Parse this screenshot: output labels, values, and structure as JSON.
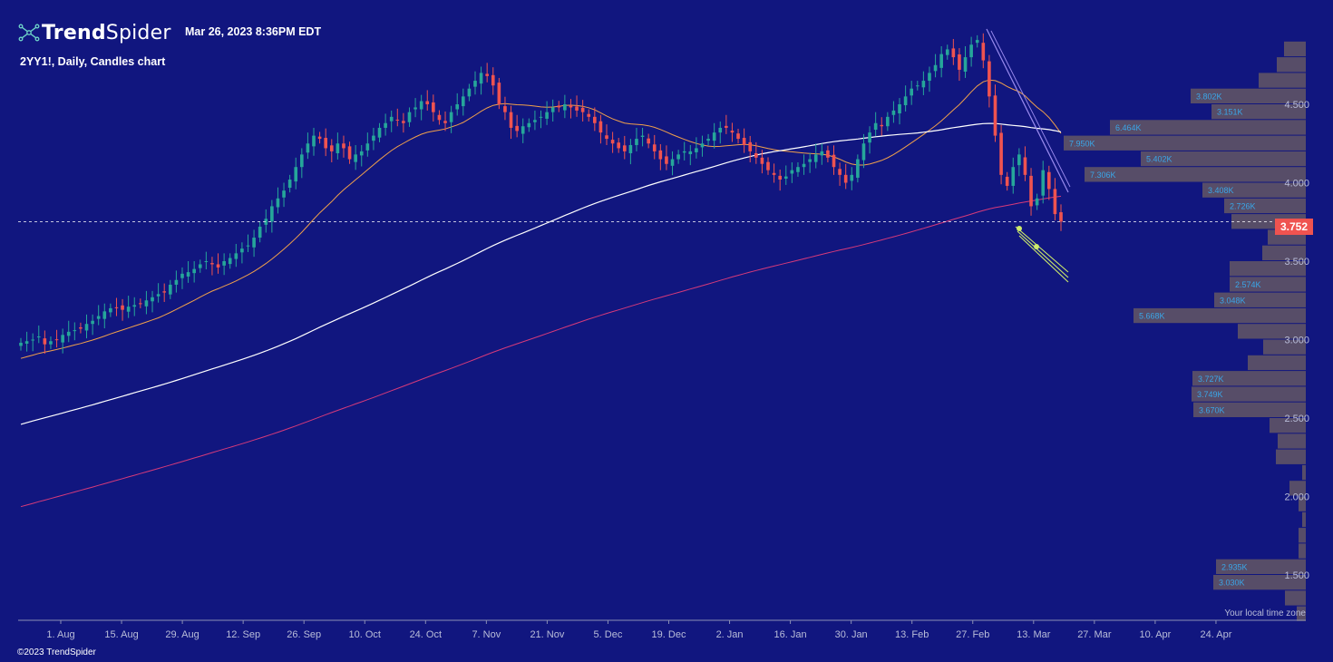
{
  "header": {
    "brand_bold": "Trend",
    "brand_light": "Spider",
    "timestamp": "Mar 26, 2023 8:36PM EDT",
    "symbol_line": "2YY1!, Daily, Candles chart"
  },
  "footer": {
    "copyright": "©2023 TrendSpider",
    "timezone_note": "Your local time zone"
  },
  "colors": {
    "background": "#11167f",
    "up": "#26a69a",
    "down": "#ef5350",
    "ma_short": "#f0a04b",
    "ma_mid": "#ffffff",
    "ma_long": "#d63a7a",
    "volume_profile": "#5d5266",
    "trendline": "#9b8cf0",
    "channel": "#cdeb6a",
    "axis_text": "#b9bdd9"
  },
  "chart_data": {
    "type": "candlestick",
    "y_axis": {
      "ticks": [
        "4.500",
        "4.000",
        "3.500",
        "3.000",
        "2.500",
        "2.000",
        "1.500"
      ],
      "range": [
        1.3,
        4.95
      ]
    },
    "x_axis": {
      "ticks": [
        "1. Aug",
        "15. Aug",
        "29. Aug",
        "12. Sep",
        "26. Sep",
        "10. Oct",
        "24. Oct",
        "7. Nov",
        "21. Nov",
        "5. Dec",
        "19. Dec",
        "2. Jan",
        "16. Jan",
        "30. Jan",
        "13. Feb",
        "27. Feb",
        "13. Mar",
        "27. Mar",
        "10. Apr",
        "24. Apr"
      ]
    },
    "last_price": "3.752",
    "closes": [
      2.98,
      2.99,
      3.0,
      3.02,
      2.97,
      2.99,
      3.0,
      3.03,
      3.05,
      3.06,
      3.07,
      3.1,
      3.12,
      3.15,
      3.18,
      3.2,
      3.2,
      3.19,
      3.21,
      3.22,
      3.23,
      3.25,
      3.27,
      3.29,
      3.3,
      3.35,
      3.38,
      3.42,
      3.43,
      3.45,
      3.48,
      3.5,
      3.48,
      3.46,
      3.5,
      3.52,
      3.55,
      3.58,
      3.6,
      3.65,
      3.72,
      3.77,
      3.85,
      3.9,
      3.95,
      4.02,
      4.1,
      4.18,
      4.25,
      4.3,
      4.28,
      4.22,
      4.2,
      4.25,
      4.22,
      4.15,
      4.18,
      4.2,
      4.25,
      4.3,
      4.35,
      4.38,
      4.42,
      4.4,
      4.38,
      4.45,
      4.48,
      4.52,
      4.5,
      4.45,
      4.4,
      4.38,
      4.45,
      4.5,
      4.55,
      4.6,
      4.65,
      4.7,
      4.68,
      4.62,
      4.5,
      4.45,
      4.35,
      4.33,
      4.36,
      4.38,
      4.4,
      4.42,
      4.45,
      4.48,
      4.48,
      4.5,
      4.48,
      4.46,
      4.45,
      4.42,
      4.38,
      4.32,
      4.28,
      4.25,
      4.22,
      4.2,
      4.24,
      4.28,
      4.3,
      4.25,
      4.2,
      4.15,
      4.12,
      4.15,
      4.18,
      4.2,
      4.2,
      4.22,
      4.25,
      4.28,
      4.32,
      4.35,
      4.35,
      4.32,
      4.28,
      4.24,
      4.2,
      4.16,
      4.12,
      4.08,
      4.05,
      4.02,
      4.04,
      4.08,
      4.1,
      4.12,
      4.15,
      4.18,
      4.2,
      4.16,
      4.1,
      4.05,
      4.0,
      4.05,
      4.15,
      4.25,
      4.32,
      4.38,
      4.36,
      4.42,
      4.46,
      4.5,
      4.55,
      4.6,
      4.62,
      4.65,
      4.7,
      4.75,
      4.82,
      4.85,
      4.8,
      4.72,
      4.8,
      4.88,
      4.91,
      4.78,
      4.55,
      4.3,
      4.05,
      3.98,
      4.1,
      4.18,
      4.05,
      3.85,
      3.9,
      4.08,
      3.96,
      3.8,
      3.752
    ]
  },
  "volume_profile": [
    {
      "price": 4.85,
      "len": 24,
      "label": ""
    },
    {
      "price": 4.75,
      "len": 32,
      "label": ""
    },
    {
      "price": 4.65,
      "len": 52,
      "label": ""
    },
    {
      "price": 4.55,
      "len": 127,
      "label": "3.802K"
    },
    {
      "price": 4.45,
      "len": 104,
      "label": "3.151K"
    },
    {
      "price": 4.35,
      "len": 216,
      "label": "6.464K"
    },
    {
      "price": 4.25,
      "len": 267,
      "label": "7.950K"
    },
    {
      "price": 4.15,
      "len": 182,
      "label": "5.402K"
    },
    {
      "price": 4.05,
      "len": 244,
      "label": "7.306K"
    },
    {
      "price": 3.95,
      "len": 114,
      "label": "3.408K"
    },
    {
      "price": 3.85,
      "len": 90,
      "label": "2.726K"
    },
    {
      "price": 3.75,
      "len": 82,
      "label": ""
    },
    {
      "price": 3.65,
      "len": 42,
      "label": ""
    },
    {
      "price": 3.55,
      "len": 48,
      "label": ""
    },
    {
      "price": 3.45,
      "len": 84,
      "label": ""
    },
    {
      "price": 3.35,
      "len": 84,
      "label": "2.574K"
    },
    {
      "price": 3.25,
      "len": 101,
      "label": "3.048K"
    },
    {
      "price": 3.15,
      "len": 190,
      "label": "5.668K"
    },
    {
      "price": 3.05,
      "len": 75,
      "label": ""
    },
    {
      "price": 2.95,
      "len": 47,
      "label": ""
    },
    {
      "price": 2.85,
      "len": 64,
      "label": ""
    },
    {
      "price": 2.75,
      "len": 125,
      "label": "3.727K"
    },
    {
      "price": 2.65,
      "len": 126,
      "label": "3.749K"
    },
    {
      "price": 2.55,
      "len": 124,
      "label": "3.670K"
    },
    {
      "price": 2.45,
      "len": 40,
      "label": ""
    },
    {
      "price": 2.35,
      "len": 31,
      "label": ""
    },
    {
      "price": 2.25,
      "len": 33,
      "label": ""
    },
    {
      "price": 2.15,
      "len": 4,
      "label": ""
    },
    {
      "price": 2.05,
      "len": 18,
      "label": ""
    },
    {
      "price": 1.95,
      "len": 8,
      "label": ""
    },
    {
      "price": 1.85,
      "len": 4,
      "label": ""
    },
    {
      "price": 1.75,
      "len": 8,
      "label": ""
    },
    {
      "price": 1.65,
      "len": 8,
      "label": ""
    },
    {
      "price": 1.55,
      "len": 99,
      "label": "2.935K"
    },
    {
      "price": 1.45,
      "len": 102,
      "label": "3.030K"
    },
    {
      "price": 1.35,
      "len": 23,
      "label": ""
    },
    {
      "price": 1.25,
      "len": 10,
      "label": ""
    }
  ]
}
